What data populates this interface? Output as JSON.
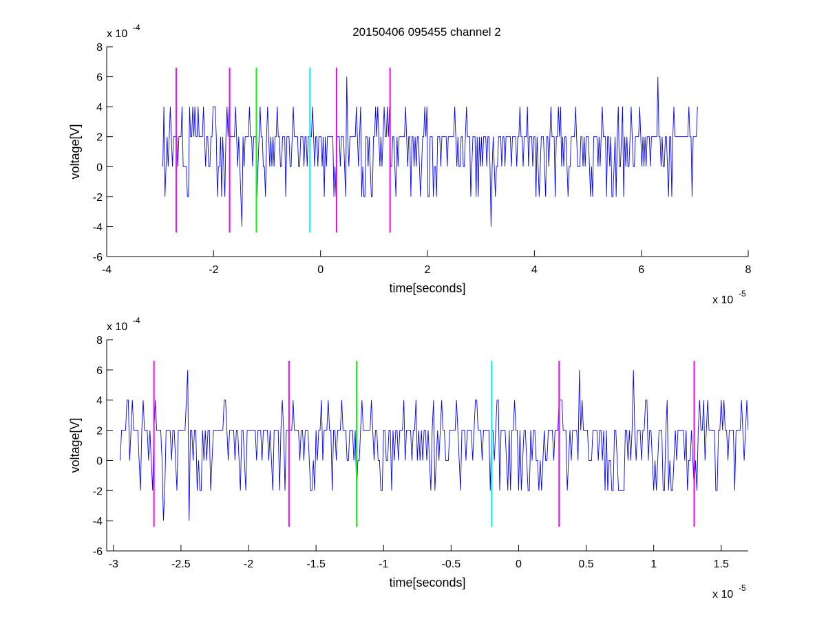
{
  "figure_title": "20150406 095455 channel 2",
  "chart_data": [
    {
      "type": "line",
      "title": "20150406 095455 channel 2",
      "xlabel": "time[seconds]",
      "ylabel": "voltage[V]",
      "x_exponent_label": "x 10",
      "x_exponent": "-5",
      "y_exponent_label": "x 10",
      "y_exponent": "-4",
      "x_unit_scale": 1e-05,
      "y_unit_scale": 0.0001,
      "xlim": [
        -4,
        8
      ],
      "ylim": [
        -6,
        8
      ],
      "xticks": [
        -4,
        -2,
        0,
        2,
        4,
        6,
        8
      ],
      "yticks": [
        -6,
        -4,
        -2,
        0,
        2,
        4,
        6,
        8
      ],
      "xtick_labels": [
        "-4",
        "-2",
        "0",
        "2",
        "4",
        "6",
        "8"
      ],
      "ytick_labels": [
        "-6",
        "-4",
        "-2",
        "0",
        "2",
        "4",
        "6",
        "8"
      ],
      "grid": false,
      "series": [
        {
          "color": "#0000ff",
          "x_range": [
            -2.95,
            7.05
          ],
          "x_step": 0.02,
          "level_step": 2,
          "noise_levels": [
            -4,
            -2,
            0,
            2,
            4,
            6
          ],
          "points": [
            [
              -2.95,
              0
            ],
            [
              -2.7,
              2
            ],
            [
              -2.44,
              4
            ],
            [
              -1.2,
              2
            ],
            [
              0.5,
              6
            ],
            [
              3.2,
              -4
            ],
            [
              5.0,
              2
            ],
            [
              6.3,
              6
            ],
            [
              7.05,
              4
            ]
          ]
        }
      ],
      "markers": [
        {
          "x": -2.7,
          "color": "#ff00ff",
          "ymin": -4.4,
          "ymax": 6.6
        },
        {
          "x": -1.7,
          "color": "#ff00ff",
          "ymin": -4.4,
          "ymax": 6.6
        },
        {
          "x": -1.2,
          "color": "#00ff00",
          "ymin": -4.4,
          "ymax": 6.6
        },
        {
          "x": -0.2,
          "color": "#00ffff",
          "ymin": -4.4,
          "ymax": 6.6
        },
        {
          "x": 0.3,
          "color": "#ff00ff",
          "ymin": -4.4,
          "ymax": 6.6
        },
        {
          "x": 1.3,
          "color": "#ff00ff",
          "ymin": -4.4,
          "ymax": 6.6
        }
      ]
    },
    {
      "type": "line",
      "title": "",
      "xlabel": "time[seconds]",
      "ylabel": "voltage[V]",
      "x_exponent_label": "x 10",
      "x_exponent": "-5",
      "y_exponent_label": "x 10",
      "y_exponent": "-4",
      "x_unit_scale": 1e-05,
      "y_unit_scale": 0.0001,
      "xlim": [
        -3.05,
        1.7
      ],
      "ylim": [
        -6,
        8
      ],
      "xticks": [
        -3,
        -2.5,
        -2,
        -1.5,
        -1,
        -0.5,
        0,
        0.5,
        1,
        1.5
      ],
      "yticks": [
        -6,
        -4,
        -2,
        0,
        2,
        4,
        6,
        8
      ],
      "xtick_labels": [
        "-3",
        "-2.5",
        "-2",
        "-1.5",
        "-1",
        "-0.5",
        "0",
        "0.5",
        "1",
        "1.5"
      ],
      "ytick_labels": [
        "-6",
        "-4",
        "-2",
        "0",
        "2",
        "4",
        "6",
        "8"
      ],
      "grid": false,
      "series": [
        {
          "color": "#0000ff",
          "x_range": [
            -2.95,
            1.7
          ],
          "x_step": 0.01,
          "level_step": 2,
          "noise_levels": [
            -4,
            -2,
            0,
            2,
            4,
            6
          ],
          "points": [
            [
              -2.95,
              0
            ],
            [
              -2.93,
              2
            ],
            [
              -2.9,
              4
            ],
            [
              -2.63,
              -4
            ],
            [
              -2.45,
              6
            ],
            [
              -2.2,
              2
            ],
            [
              -2.0,
              2
            ],
            [
              -1.6,
              2
            ],
            [
              0.45,
              6
            ],
            [
              0.85,
              6
            ],
            [
              1.7,
              2
            ]
          ]
        }
      ],
      "markers": [
        {
          "x": -2.7,
          "color": "#ff00ff",
          "ymin": -4.4,
          "ymax": 6.6
        },
        {
          "x": -1.7,
          "color": "#ff00ff",
          "ymin": -4.4,
          "ymax": 6.6
        },
        {
          "x": -1.2,
          "color": "#00ff00",
          "ymin": -4.4,
          "ymax": 6.6
        },
        {
          "x": -0.2,
          "color": "#00ffff",
          "ymin": -4.4,
          "ymax": 6.6
        },
        {
          "x": 0.3,
          "color": "#ff00ff",
          "ymin": -4.4,
          "ymax": 6.6
        },
        {
          "x": 1.3,
          "color": "#ff00ff",
          "ymin": -4.4,
          "ymax": 6.6
        }
      ]
    }
  ]
}
